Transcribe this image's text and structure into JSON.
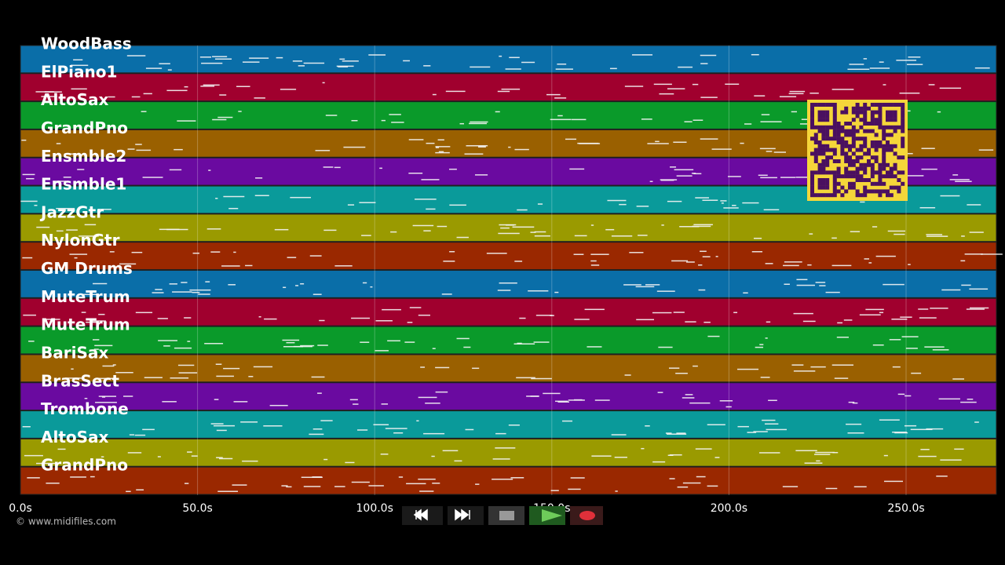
{
  "tracks": [
    "WoodBass",
    "ElPiano1",
    "AltoSax",
    "GrandPno",
    "Ensmble2",
    "Ensmble1",
    "JazzGtr",
    "NylonGtr",
    "GM Drums",
    "MuteTrum",
    "MuteTrum",
    "BariSax",
    "BrasSect",
    "Trombone",
    "AltoSax",
    "GrandPno"
  ],
  "time_labels": [
    "0.0s",
    "50.0s",
    "100.0s",
    "150.0s",
    "200.0s",
    "250.0s"
  ],
  "copyright": "© www.midifiles.com"
}
